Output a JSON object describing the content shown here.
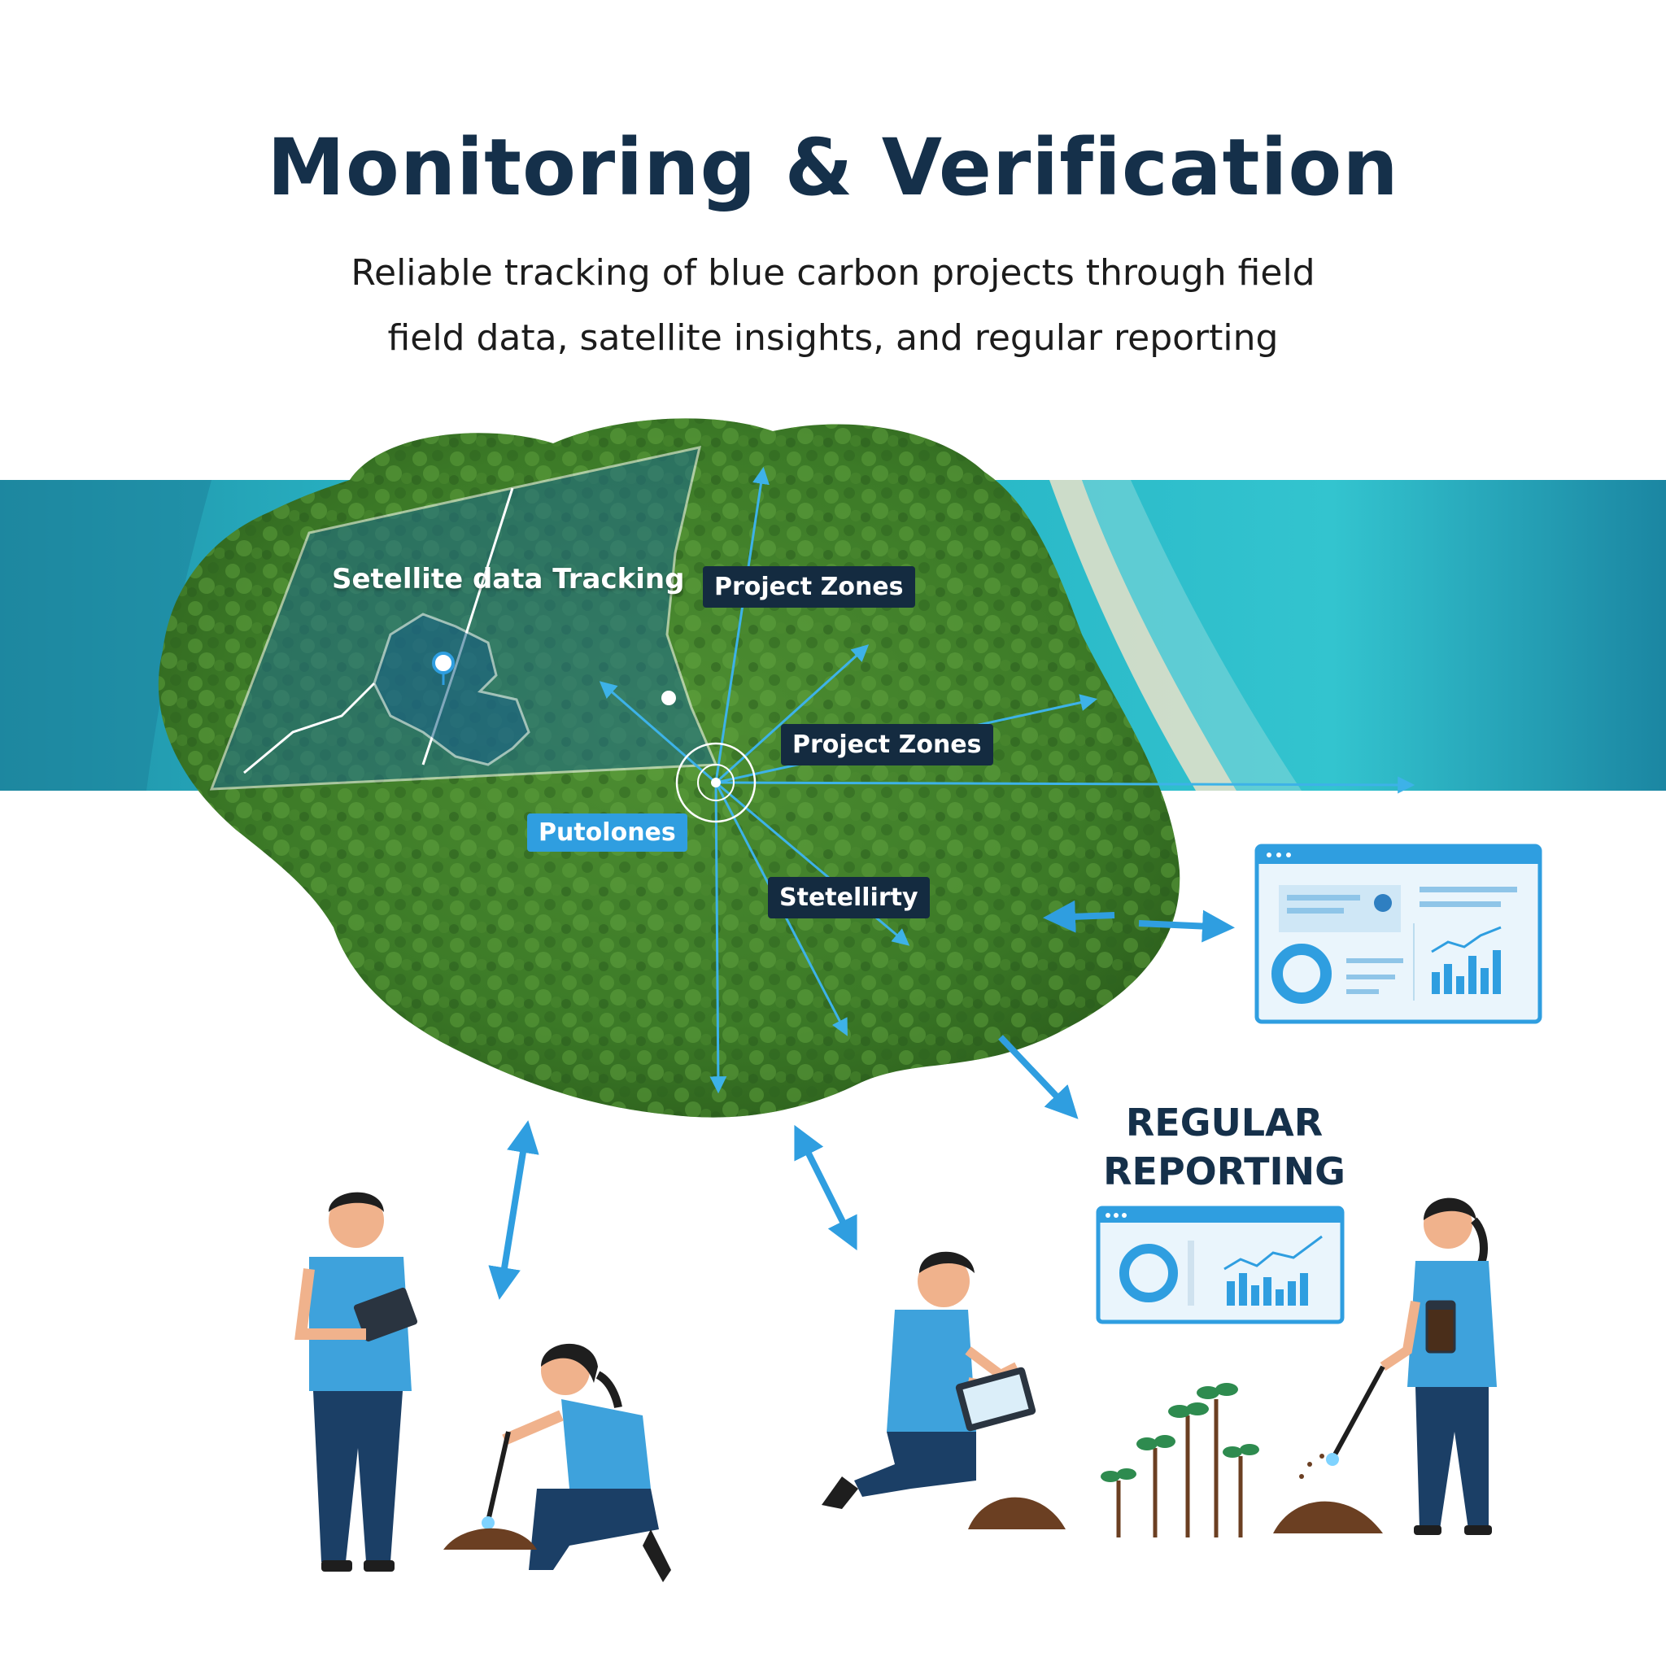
{
  "header": {
    "title": "Monitoring & Verification",
    "subtitle_line1": "Reliable tracking of blue carbon projects through field",
    "subtitle_line2": "field data, satellite insights, and regular reporting"
  },
  "map_labels": {
    "satellite_tracking": "Setellite data Tracking",
    "project_zones_top": "Project Zones",
    "project_zones_mid": "Project Zones",
    "putolones": "Putolones",
    "stetellirty": "Stetellirty"
  },
  "reporting": {
    "line1": "REGULAR",
    "line2": "REPORTING"
  },
  "colors": {
    "title": "#15304a",
    "accent_blue": "#2f9ee0",
    "ocean": "#1f9fb3",
    "forest": "#3f7f2a",
    "shirt": "#3ea2dc",
    "pants": "#1b3f66"
  },
  "icons": [
    "location-pin-icon",
    "dashboard-window-icon",
    "donut-chart-icon",
    "bar-chart-icon",
    "tablet-icon",
    "soil-probe-icon",
    "sample-jar-icon",
    "seedling-icon"
  ]
}
